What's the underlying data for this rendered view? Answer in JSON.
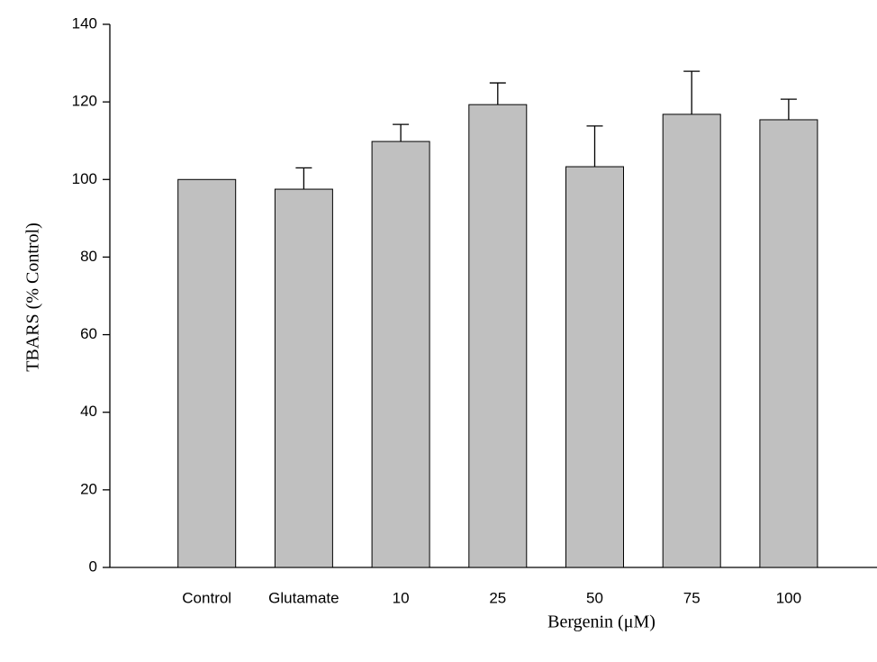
{
  "chart_data": {
    "type": "bar",
    "xlabel": "Bergenin (μM)",
    "ylabel": "TBARS (% Control)",
    "categories": [
      "Control",
      "Glutamate",
      "10",
      "25",
      "50",
      "75",
      "100"
    ],
    "values": [
      100,
      97.5,
      109.8,
      119.3,
      103.3,
      116.8,
      115.4
    ],
    "errors": [
      null,
      5.5,
      4.4,
      5.6,
      10.5,
      11.1,
      5.3
    ],
    "color": "#c0c0c0",
    "ylim": [
      0,
      140
    ],
    "yticks": [
      0,
      20,
      40,
      60,
      80,
      100,
      120,
      140
    ],
    "grid": false
  }
}
